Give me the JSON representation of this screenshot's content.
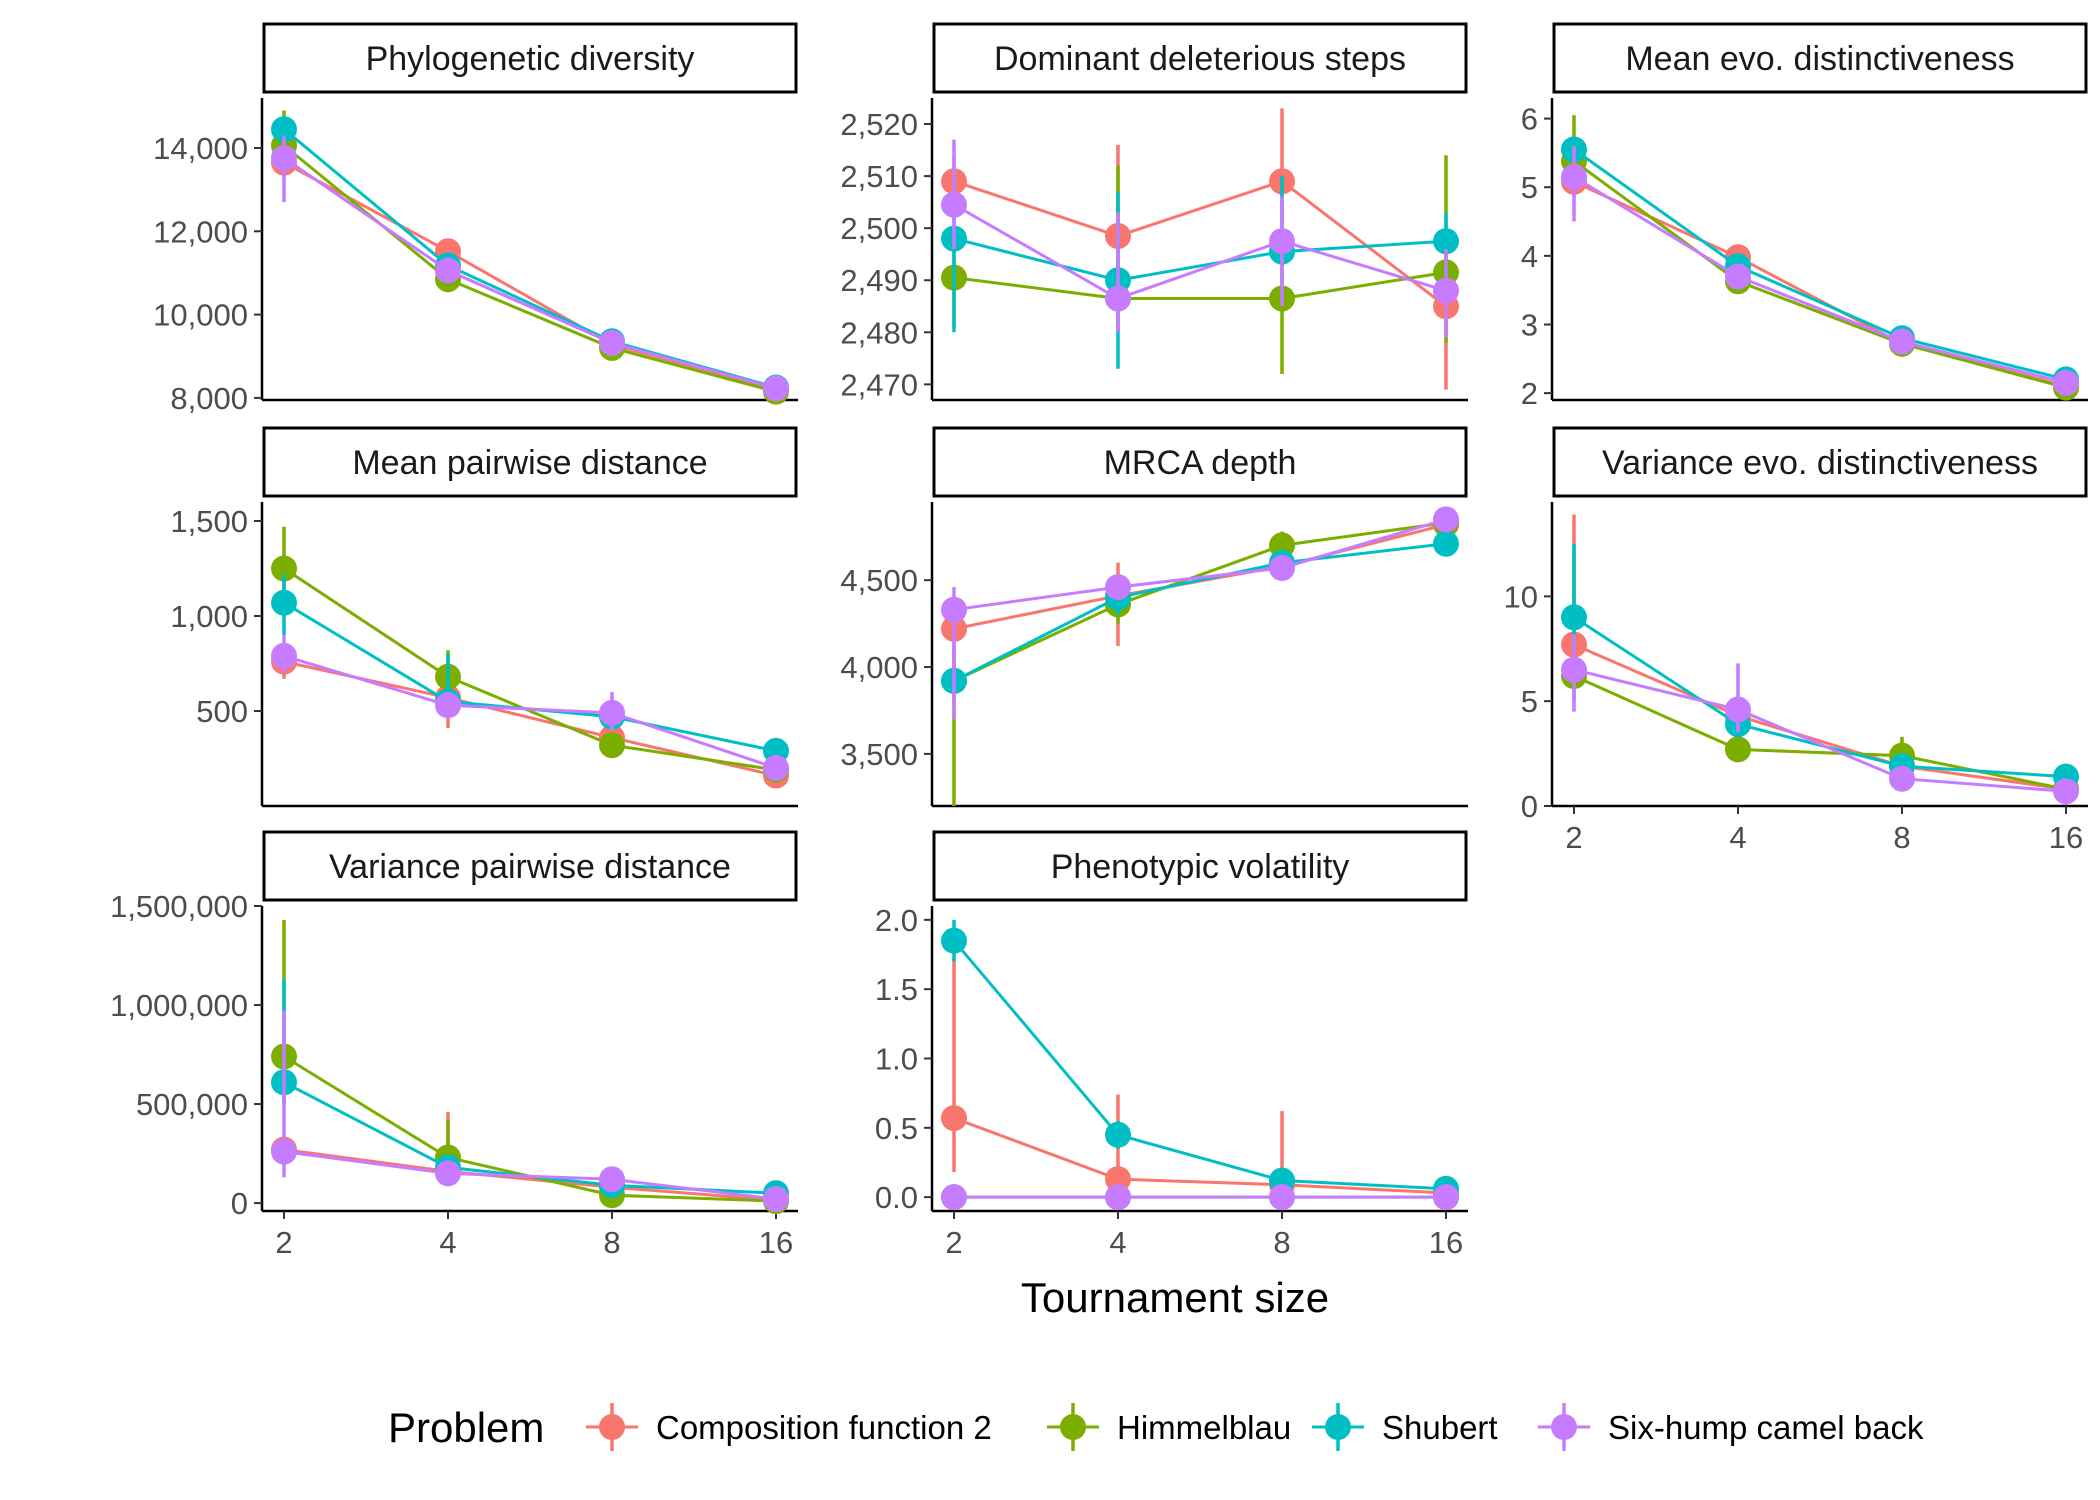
{
  "chart_data": {
    "type": "line",
    "x_label": "Tournament size",
    "x": [
      2,
      4,
      8,
      16
    ],
    "x_tick_labels": [
      "2",
      "4",
      "8",
      "16"
    ],
    "x_scale": "log2",
    "legend": {
      "title": "Problem",
      "placement": "bottom",
      "items": [
        {
          "name": "Composition function 2",
          "color": "#F8766D"
        },
        {
          "name": "Himmelblau",
          "color": "#7CAE00"
        },
        {
          "name": "Shubert",
          "color": "#00BFC4"
        },
        {
          "name": "Six-hump camel back",
          "color": "#C77CFF"
        }
      ]
    },
    "panels": [
      {
        "title": "Phylogenetic diversity",
        "ylim": [
          7950,
          15200
        ],
        "yticks": [
          8000,
          10000,
          12000,
          14000
        ],
        "ytick_labels": [
          "8,000",
          "10,000",
          "12,000",
          "14,000"
        ],
        "series": [
          {
            "values": [
              13650,
              11520,
              9280,
              8210
            ],
            "lo": [
              13400,
              11300,
              9180,
              8130
            ],
            "hi": [
              13900,
              11750,
              9380,
              8290
            ]
          },
          {
            "values": [
              14060,
              10850,
              9200,
              8150
            ],
            "lo": [
              13300,
              10650,
              9100,
              8080
            ],
            "hi": [
              14900,
              11050,
              9300,
              8220
            ]
          },
          {
            "values": [
              14450,
              11180,
              9360,
              8250
            ],
            "lo": [
              14200,
              10950,
              9260,
              8180
            ],
            "hi": [
              14700,
              11400,
              9460,
              8320
            ]
          },
          {
            "values": [
              13760,
              11060,
              9320,
              8230
            ],
            "lo": [
              12700,
              10800,
              9200,
              8150
            ],
            "hi": [
              14300,
              11300,
              9440,
              8310
            ]
          }
        ]
      },
      {
        "title": "Dominant deleterious steps",
        "ylim": [
          2467,
          2525
        ],
        "yticks": [
          2470,
          2480,
          2490,
          2500,
          2510,
          2520
        ],
        "ytick_labels": [
          "2,470",
          "2,480",
          "2,490",
          "2,500",
          "2,510",
          "2,520"
        ],
        "series": [
          {
            "values": [
              2509,
              2498.5,
              2509,
              2485
            ],
            "lo": [
              2504,
              2487,
              2494,
              2469
            ],
            "hi": [
              2514,
              2516,
              2523,
              2497
            ]
          },
          {
            "values": [
              2490.5,
              2486.5,
              2486.5,
              2491.5
            ],
            "lo": [
              2481,
              2480,
              2472,
              2478
            ],
            "hi": [
              2498,
              2512,
              2500,
              2514
            ]
          },
          {
            "values": [
              2498,
              2490,
              2495.5,
              2497.5
            ],
            "lo": [
              2480,
              2473,
              2488,
              2487
            ],
            "hi": [
              2510,
              2507,
              2510,
              2503
            ]
          },
          {
            "values": [
              2504.5,
              2486.5,
              2497.5,
              2488
            ],
            "lo": [
              2496,
              2480,
              2485,
              2479
            ],
            "hi": [
              2517,
              2503,
              2506,
              2496
            ]
          }
        ]
      },
      {
        "title": "Mean evo. distinctiveness",
        "ylim": [
          1.9,
          6.3
        ],
        "yticks": [
          2,
          3,
          4,
          5,
          6
        ],
        "ytick_labels": [
          "2",
          "3",
          "4",
          "5",
          "6"
        ],
        "series": [
          {
            "values": [
              5.08,
              3.98,
              2.72,
              2.1
            ],
            "lo": [
              4.85,
              3.85,
              2.65,
              2.05
            ],
            "hi": [
              5.3,
              4.1,
              2.8,
              2.15
            ]
          },
          {
            "values": [
              5.38,
              3.63,
              2.72,
              2.08
            ],
            "lo": [
              4.9,
              3.5,
              2.65,
              2.03
            ],
            "hi": [
              6.05,
              3.8,
              2.8,
              2.13
            ]
          },
          {
            "values": [
              5.55,
              3.85,
              2.8,
              2.2
            ],
            "lo": [
              5.4,
              3.75,
              2.75,
              2.15
            ],
            "hi": [
              5.7,
              3.95,
              2.85,
              2.25
            ]
          },
          {
            "values": [
              5.15,
              3.7,
              2.75,
              2.15
            ],
            "lo": [
              4.5,
              3.6,
              2.7,
              2.1
            ],
            "hi": [
              5.6,
              3.8,
              2.8,
              2.2
            ]
          }
        ]
      },
      {
        "title": "Mean pairwise distance",
        "ylim": [
          0,
          1600
        ],
        "yticks": [
          500,
          1000,
          1500
        ],
        "ytick_labels": [
          "500",
          "1,000",
          "1,500"
        ],
        "series": [
          {
            "values": [
              760,
              570,
              360,
              160
            ],
            "lo": [
              670,
              410,
              320,
              140
            ],
            "hi": [
              800,
              680,
              400,
              180
            ]
          },
          {
            "values": [
              1250,
              680,
              320,
              190
            ],
            "lo": [
              1050,
              560,
              290,
              170
            ],
            "hi": [
              1470,
              820,
              350,
              210
            ]
          },
          {
            "values": [
              1070,
              550,
              470,
              290
            ],
            "lo": [
              900,
              480,
              440,
              270
            ],
            "hi": [
              1220,
              800,
              500,
              310
            ]
          },
          {
            "values": [
              790,
              530,
              490,
              200
            ],
            "lo": [
              700,
              470,
              400,
              180
            ],
            "hi": [
              900,
              600,
              600,
              220
            ]
          }
        ]
      },
      {
        "title": "MRCA depth",
        "ylim": [
          3200,
          4950
        ],
        "yticks": [
          3500,
          4000,
          4500
        ],
        "ytick_labels": [
          "3,500",
          "4,000",
          "4,500"
        ],
        "series": [
          {
            "values": [
              4220,
              4410,
              4580,
              4820
            ],
            "lo": [
              4000,
              4120,
              4520,
              4780
            ],
            "hi": [
              4380,
              4600,
              4650,
              4860
            ]
          },
          {
            "values": [
              3920,
              4360,
              4700,
              4830
            ],
            "lo": [
              3200,
              4250,
              4640,
              4790
            ],
            "hi": [
              4100,
              4480,
              4780,
              4870
            ]
          },
          {
            "values": [
              3920,
              4400,
              4600,
              4710
            ],
            "lo": [
              3800,
              4300,
              4560,
              4660
            ],
            "hi": [
              4000,
              4480,
              4650,
              4760
            ]
          },
          {
            "values": [
              4330,
              4460,
              4570,
              4850
            ],
            "lo": [
              3700,
              4400,
              4520,
              4810
            ],
            "hi": [
              4460,
              4520,
              4620,
              4890
            ]
          }
        ]
      },
      {
        "title": "Variance evo. distinctiveness",
        "ylim": [
          0,
          14.5
        ],
        "yticks": [
          0,
          5,
          10
        ],
        "ytick_labels": [
          "0",
          "5",
          "10"
        ],
        "series": [
          {
            "values": [
              7.7,
              4.3,
              1.9,
              0.8
            ],
            "lo": [
              6.0,
              3.5,
              1.6,
              0.6
            ],
            "hi": [
              13.9,
              5.0,
              2.2,
              1.0
            ]
          },
          {
            "values": [
              6.2,
              2.7,
              2.4,
              0.8
            ],
            "lo": [
              5.0,
              2.4,
              1.8,
              0.6
            ],
            "hi": [
              12.2,
              3.0,
              3.3,
              1.0
            ]
          },
          {
            "values": [
              9.0,
              3.9,
              1.9,
              1.4
            ],
            "lo": [
              7.5,
              3.4,
              1.6,
              1.2
            ],
            "hi": [
              12.5,
              4.4,
              2.2,
              1.6
            ]
          },
          {
            "values": [
              6.5,
              4.6,
              1.3,
              0.7
            ],
            "lo": [
              4.5,
              3.5,
              1.0,
              0.5
            ],
            "hi": [
              8.2,
              6.8,
              1.6,
              0.9
            ]
          }
        ]
      },
      {
        "title": "Variance pairwise distance",
        "ylim": [
          -40000,
          1500000
        ],
        "yticks": [
          0,
          500000,
          1000000,
          1500000
        ],
        "ytick_labels": [
          "0",
          "500,000",
          "1,000,000",
          "1,500,000"
        ],
        "series": [
          {
            "values": [
              270000,
              160000,
              80000,
              15000
            ],
            "lo": [
              200000,
              90000,
              50000,
              5000
            ],
            "hi": [
              340000,
              460000,
              110000,
              25000
            ]
          },
          {
            "values": [
              740000,
              230000,
              40000,
              10000
            ],
            "lo": [
              500000,
              140000,
              20000,
              5000
            ],
            "hi": [
              1430000,
              420000,
              70000,
              20000
            ]
          },
          {
            "values": [
              610000,
              180000,
              90000,
              50000
            ],
            "lo": [
              500000,
              120000,
              70000,
              40000
            ],
            "hi": [
              1130000,
              240000,
              110000,
              60000
            ]
          },
          {
            "values": [
              260000,
              150000,
              120000,
              20000
            ],
            "lo": [
              130000,
              110000,
              80000,
              10000
            ],
            "hi": [
              970000,
              190000,
              160000,
              30000
            ]
          }
        ]
      },
      {
        "title": "Phenotypic volatility",
        "ylim": [
          -0.1,
          2.1
        ],
        "yticks": [
          0,
          0.5,
          1,
          1.5,
          2
        ],
        "ytick_labels": [
          "0.0",
          "0.5",
          "1.0",
          "1.5",
          "2.0"
        ],
        "series": [
          {
            "values": [
              0.57,
              0.13,
              0.09,
              0.03
            ],
            "lo": [
              0.18,
              0.05,
              0.02,
              0.01
            ],
            "hi": [
              1.72,
              0.74,
              0.62,
              0.06
            ]
          },
          {
            "values": [
              0,
              0,
              0,
              0
            ],
            "lo": [
              0,
              0,
              0,
              0
            ],
            "hi": [
              0,
              0,
              0,
              0
            ]
          },
          {
            "values": [
              1.85,
              0.45,
              0.12,
              0.06
            ],
            "lo": [
              1.7,
              0.35,
              0.08,
              0.04
            ],
            "hi": [
              2.0,
              0.55,
              0.16,
              0.08
            ]
          },
          {
            "values": [
              0,
              0,
              0,
              0
            ],
            "lo": [
              0,
              0,
              0,
              0
            ],
            "hi": [
              0,
              0,
              0,
              0
            ]
          }
        ]
      }
    ]
  }
}
